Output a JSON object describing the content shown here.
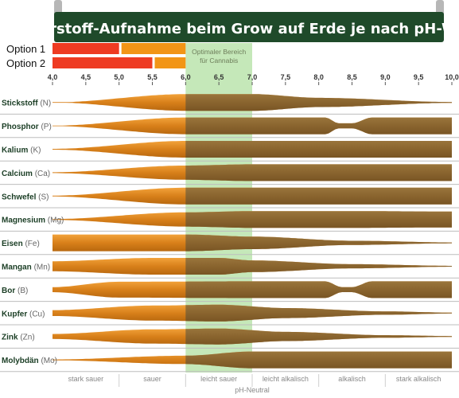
{
  "chart_data": {
    "type": "area",
    "title": "Nährstoff-Aufnahme beim Grow auf Erde je nach pH-Wert",
    "x_ticks": [
      "4,0",
      "4,5",
      "5,0",
      "5,5",
      "6,0",
      "6,5",
      "7,0",
      "7,5",
      "8,0",
      "8,5",
      "9,0",
      "9,5",
      "10,0"
    ],
    "xlim": [
      4.0,
      10.0
    ],
    "options": [
      {
        "label": "Option 1",
        "ranges": [
          {
            "from": 4.0,
            "to": 5.0,
            "color": "#ee3b22"
          },
          {
            "from": 5.0,
            "to": 6.0,
            "color": "#f29516"
          }
        ]
      },
      {
        "label": "Option 2",
        "ranges": [
          {
            "from": 4.0,
            "to": 5.5,
            "color": "#ee3b22"
          },
          {
            "from": 5.5,
            "to": 6.0,
            "color": "#f29516"
          }
        ]
      }
    ],
    "optimal_range": {
      "from": 6.0,
      "to": 7.0,
      "label_line1": "Optimaler Bereich",
      "label_line2": "für Cannabis",
      "color": "#9ed98b"
    },
    "zones": [
      {
        "label": "stark sauer",
        "center": 4.5
      },
      {
        "label": "sauer",
        "center": 5.5
      },
      {
        "label": "leicht sauer",
        "center": 6.5
      },
      {
        "label": "leicht alkalisch",
        "center": 7.5
      },
      {
        "label": "alkalisch",
        "center": 8.5
      },
      {
        "label": "stark alkalisch",
        "center": 9.5
      }
    ],
    "neutral_label": "pH-Neutral",
    "neutral_at": 7.0,
    "colors": {
      "band_orange": "#e58a18",
      "band_brown": "#7c6034",
      "title_bg": "#1f4a2a",
      "row_line": "#bdbdbd"
    },
    "nutrients": [
      {
        "name": "Stickstoff",
        "symbol": "(N)",
        "profile": [
          [
            4.0,
            0
          ],
          [
            6.0,
            1
          ],
          [
            7.0,
            1
          ],
          [
            8.0,
            0.55
          ],
          [
            10.0,
            0.05
          ]
        ]
      },
      {
        "name": "Phosphor",
        "symbol": "(P)",
        "profile": [
          [
            4.0,
            0.02
          ],
          [
            6.0,
            1
          ],
          [
            7.0,
            1
          ],
          [
            8.1,
            1
          ],
          [
            8.3,
            0.3
          ],
          [
            8.5,
            0.3
          ],
          [
            8.8,
            1
          ],
          [
            10.0,
            1
          ]
        ]
      },
      {
        "name": "Kalium",
        "symbol": "(K)",
        "profile": [
          [
            4.0,
            0.05
          ],
          [
            6.0,
            1
          ],
          [
            10.0,
            1
          ]
        ]
      },
      {
        "name": "Calcium",
        "symbol": "(Ca)",
        "profile": [
          [
            4.0,
            0.05
          ],
          [
            6.0,
            0.85
          ],
          [
            7.0,
            1
          ],
          [
            10.0,
            1
          ]
        ]
      },
      {
        "name": "Schwefel",
        "symbol": "(S)",
        "profile": [
          [
            4.0,
            0.05
          ],
          [
            6.0,
            1
          ],
          [
            10.0,
            1
          ]
        ]
      },
      {
        "name": "Magnesium",
        "symbol": "(Mg)",
        "profile": [
          [
            4.0,
            0.05
          ],
          [
            6.0,
            0.85
          ],
          [
            7.0,
            1
          ],
          [
            8.5,
            1
          ],
          [
            10.0,
            0.95
          ]
        ]
      },
      {
        "name": "Eisen",
        "symbol": "(Fe)",
        "profile": [
          [
            4.0,
            1
          ],
          [
            6.0,
            1
          ],
          [
            7.0,
            0.75
          ],
          [
            8.5,
            0.25
          ],
          [
            10.0,
            0.05
          ]
        ]
      },
      {
        "name": "Mangan",
        "symbol": "(Mn)",
        "profile": [
          [
            4.0,
            0.6
          ],
          [
            5.5,
            1
          ],
          [
            6.5,
            1
          ],
          [
            7.0,
            0.7
          ],
          [
            8.5,
            0.25
          ],
          [
            10.0,
            0.05
          ]
        ]
      },
      {
        "name": "Bor",
        "symbol": "(B)",
        "profile": [
          [
            4.0,
            0.3
          ],
          [
            5.0,
            0.95
          ],
          [
            7.0,
            1
          ],
          [
            8.1,
            1
          ],
          [
            8.35,
            0.3
          ],
          [
            8.5,
            0.3
          ],
          [
            8.8,
            1
          ],
          [
            10.0,
            1
          ]
        ]
      },
      {
        "name": "Kupfer",
        "symbol": "(Cu)",
        "profile": [
          [
            4.0,
            0.35
          ],
          [
            5.5,
            0.9
          ],
          [
            6.5,
            1
          ],
          [
            7.5,
            0.6
          ],
          [
            9.0,
            0.2
          ],
          [
            10.0,
            0.05
          ]
        ]
      },
      {
        "name": "Zink",
        "symbol": "(Zn)",
        "profile": [
          [
            4.0,
            0.3
          ],
          [
            5.5,
            0.85
          ],
          [
            6.5,
            0.95
          ],
          [
            7.5,
            0.55
          ],
          [
            9.0,
            0.15
          ],
          [
            10.0,
            0.05
          ]
        ]
      },
      {
        "name": "Molybdän",
        "symbol": "(Mo)",
        "profile": [
          [
            4.0,
            0.05
          ],
          [
            6.0,
            0.5
          ],
          [
            7.0,
            1
          ],
          [
            10.0,
            1
          ]
        ]
      }
    ]
  }
}
